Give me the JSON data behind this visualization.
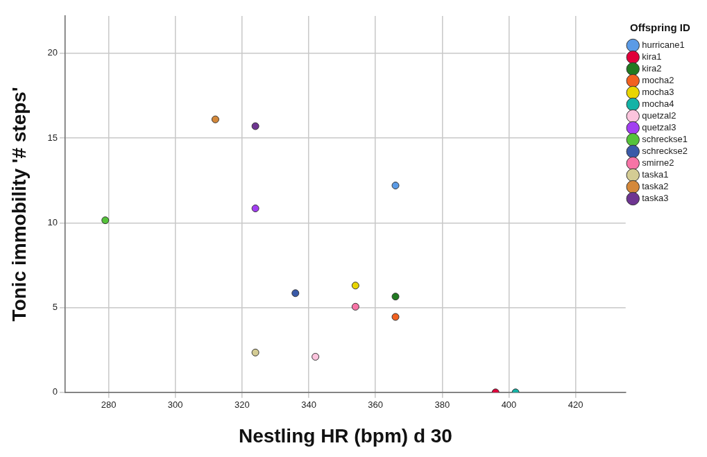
{
  "chart_data": {
    "type": "scatter",
    "xlabel": "Nestling HR (bpm) d 30",
    "ylabel": "Tonic immobility '# steps'",
    "legend_title": "Offspring ID",
    "legend": "right",
    "grid": true,
    "marker": "circle",
    "xlim": [
      267,
      435
    ],
    "xticks": [
      280,
      300,
      320,
      340,
      360,
      380,
      400,
      420
    ],
    "ylim": [
      0,
      22.2
    ],
    "yticks": [
      0,
      5,
      10,
      15,
      20
    ],
    "series": [
      {
        "name": "hurricane1",
        "color": "#5b9be6",
        "x": [
          366
        ],
        "values": [
          12.2
        ]
      },
      {
        "name": "kira1",
        "color": "#e0003a",
        "x": [
          396
        ],
        "values": [
          0
        ]
      },
      {
        "name": "kira2",
        "color": "#217a21",
        "x": [
          366
        ],
        "values": [
          5.65
        ]
      },
      {
        "name": "mocha2",
        "color": "#f2601f",
        "x": [
          366
        ],
        "values": [
          4.45
        ]
      },
      {
        "name": "mocha3",
        "color": "#e8d500",
        "x": [
          354
        ],
        "values": [
          6.3
        ]
      },
      {
        "name": "mocha4",
        "color": "#13b3a6",
        "x": [
          402
        ],
        "values": [
          0
        ]
      },
      {
        "name": "quetzal2",
        "color": "#fcc4dd",
        "x": [
          342
        ],
        "values": [
          2.1
        ]
      },
      {
        "name": "quetzal3",
        "color": "#a23ef2",
        "x": [
          324
        ],
        "values": [
          10.85
        ]
      },
      {
        "name": "schreckse1",
        "color": "#55c23a",
        "x": [
          279
        ],
        "values": [
          10.15
        ]
      },
      {
        "name": "schreckse2",
        "color": "#3a5aa8",
        "x": [
          336
        ],
        "values": [
          5.85
        ]
      },
      {
        "name": "smirne2",
        "color": "#f774a6",
        "x": [
          354
        ],
        "values": [
          5.05
        ]
      },
      {
        "name": "taska1",
        "color": "#d4cc94",
        "x": [
          324
        ],
        "values": [
          2.35
        ]
      },
      {
        "name": "taska2",
        "color": "#d4883a",
        "x": [
          312
        ],
        "values": [
          16.1
        ]
      },
      {
        "name": "taska3",
        "color": "#6e3591",
        "x": [
          324
        ],
        "values": [
          15.7
        ]
      }
    ]
  }
}
